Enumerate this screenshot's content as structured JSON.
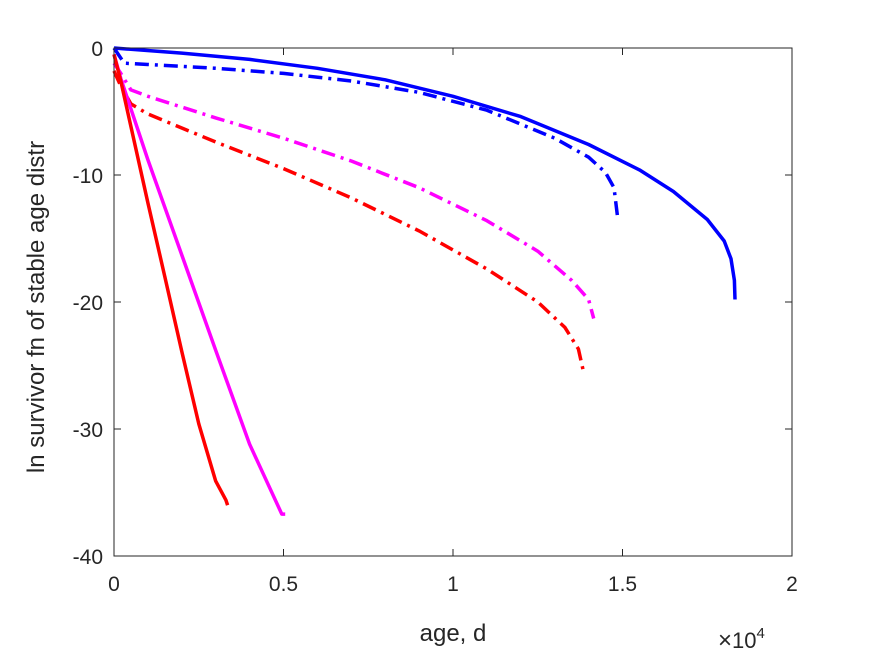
{
  "chart_data": {
    "type": "line",
    "title": "",
    "xlabel": "age, d",
    "ylabel": "ln survivor fn of stable age distr",
    "x_multiplier": {
      "base": "10",
      "exponent": "4"
    },
    "xlim": [
      0,
      20000
    ],
    "ylim": [
      -40,
      0
    ],
    "xticks": [
      0,
      5000,
      10000,
      15000,
      20000
    ],
    "xtick_labels": [
      "0",
      "0.5",
      "1",
      "1.5",
      "2"
    ],
    "yticks": [
      0,
      -10,
      -20,
      -30,
      -40
    ],
    "ytick_labels": [
      "0",
      "-10",
      "-20",
      "-30",
      "-40"
    ],
    "grid": false,
    "series": [
      {
        "color": "#0000ff",
        "style": "solid",
        "x": [
          0,
          500,
          2000,
          4000,
          6000,
          8000,
          10000,
          12000,
          14000,
          15500,
          16500,
          17500,
          18000,
          18200,
          18300,
          18320
        ],
        "y": [
          0,
          -0.1,
          -0.4,
          -0.9,
          -1.6,
          -2.5,
          -3.8,
          -5.4,
          -7.6,
          -9.6,
          -11.3,
          -13.5,
          -15.2,
          -16.6,
          -18.3,
          -19.8
        ]
      },
      {
        "color": "#0000ff",
        "style": "dashdot",
        "x": [
          0,
          300,
          1000,
          3000,
          5000,
          7000,
          9000,
          11000,
          13000,
          14000,
          14500,
          14750,
          14850
        ],
        "y": [
          0,
          -1.2,
          -1.3,
          -1.6,
          -2.0,
          -2.6,
          -3.5,
          -4.9,
          -7.1,
          -8.6,
          -9.8,
          -11.0,
          -13.2
        ]
      },
      {
        "color": "#ff00ff",
        "style": "dashdot",
        "x": [
          0,
          200,
          500,
          1000,
          3000,
          5000,
          7000,
          9000,
          11000,
          12500,
          13500,
          14000,
          14150
        ],
        "y": [
          -1.2,
          -2.0,
          -3.3,
          -3.8,
          -5.5,
          -7.1,
          -8.9,
          -11.0,
          -13.6,
          -16.0,
          -18.3,
          -19.8,
          -21.3
        ]
      },
      {
        "color": "#ff0000",
        "style": "dashdot",
        "x": [
          0,
          200,
          500,
          1000,
          3000,
          5000,
          7000,
          9000,
          11000,
          12500,
          13300,
          13700,
          13850
        ],
        "y": [
          -1.8,
          -3.0,
          -4.4,
          -5.2,
          -7.4,
          -9.5,
          -11.8,
          -14.4,
          -17.4,
          -20.0,
          -22.0,
          -23.7,
          -25.5
        ]
      },
      {
        "color": "#ff00ff",
        "style": "solid",
        "x": [
          0,
          200,
          1000,
          2000,
          3000,
          4000,
          4950,
          5050
        ],
        "y": [
          -0.5,
          -2.4,
          -8.8,
          -16.3,
          -23.8,
          -31.2,
          -36.7,
          -36.7
        ]
      },
      {
        "color": "#ff0000",
        "style": "solid",
        "x": [
          0,
          200,
          1000,
          1500,
          2000,
          2500,
          3000,
          3300,
          3350
        ],
        "y": [
          -0.5,
          -2.6,
          -12.2,
          -18.0,
          -23.9,
          -29.6,
          -34.1,
          -35.6,
          -36.0
        ]
      }
    ]
  }
}
